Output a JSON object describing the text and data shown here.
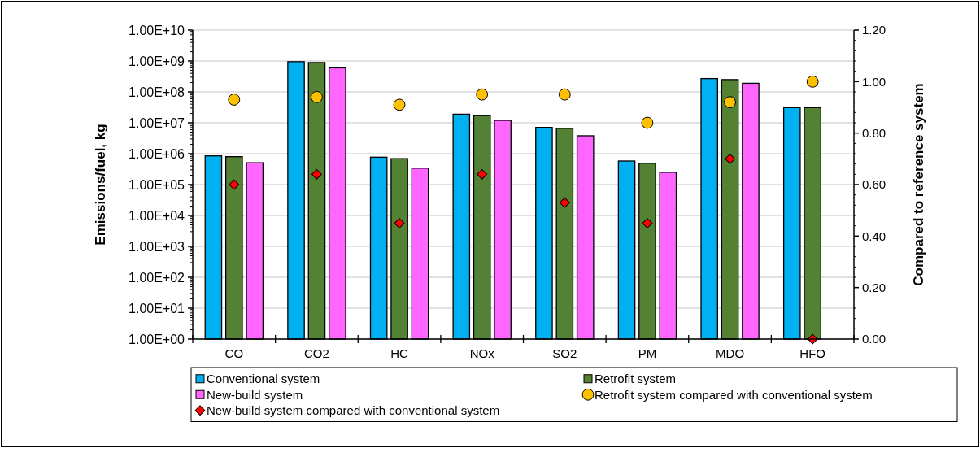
{
  "chart_data": {
    "type": "bar",
    "ylabel": "Emissions/fuel, kg",
    "y2label": "Compared to reference system",
    "categories": [
      "CO",
      "CO2",
      "HC",
      "NOx",
      "SO2",
      "PM",
      "MDO",
      "HFO"
    ],
    "log": "y",
    "grid": "y",
    "legend": "bottom",
    "ylim": [
      1,
      10000000000
    ],
    "yticks": [
      {
        "value": 1,
        "label": "1.00E+00"
      },
      {
        "value": 10,
        "label": "1.00E+01"
      },
      {
        "value": 100,
        "label": "1.00E+02"
      },
      {
        "value": 1000,
        "label": "1.00E+03"
      },
      {
        "value": 10000,
        "label": "1.00E+04"
      },
      {
        "value": 100000,
        "label": "1.00E+05"
      },
      {
        "value": 1000000,
        "label": "1.00E+06"
      },
      {
        "value": 10000000,
        "label": "1.00E+07"
      },
      {
        "value": 100000000,
        "label": "1.00E+08"
      },
      {
        "value": 1000000000,
        "label": "1.00E+09"
      },
      {
        "value": 10000000000,
        "label": "1.00E+10"
      }
    ],
    "y2lim": [
      0,
      1.2
    ],
    "y2ticks": [
      {
        "value": 0,
        "label": "0.00"
      },
      {
        "value": 0.2,
        "label": "0.20"
      },
      {
        "value": 0.4,
        "label": "0.40"
      },
      {
        "value": 0.6,
        "label": "0.60"
      },
      {
        "value": 0.8,
        "label": "0.80"
      },
      {
        "value": 1,
        "label": "1.00"
      },
      {
        "value": 1.2,
        "label": "1.20"
      }
    ],
    "series": [
      {
        "name": "Conventional system",
        "color": "#00b0f0",
        "values": [
          850000,
          950000000,
          770000,
          19000000,
          7100000,
          580000,
          270000000,
          31000000
        ]
      },
      {
        "name": "Retrofit system",
        "color": "#548235",
        "values": [
          800000,
          890000000,
          690000,
          17000000,
          6600000,
          490000,
          250000000,
          31000000
        ]
      },
      {
        "name": "New-build system",
        "color": "#ff66ff",
        "values": [
          510000,
          600000000,
          340000,
          12000000,
          3800000,
          250000,
          190000000,
          null
        ]
      },
      {
        "name": "Retrofit system compared with conventional system",
        "type": "scatter",
        "axis": "y2",
        "marker": "circle",
        "color": "#ffc000",
        "values": [
          0.93,
          0.94,
          0.91,
          0.95,
          0.95,
          0.84,
          0.92,
          1.0
        ]
      },
      {
        "name": "New-build system compared with conventional system",
        "type": "scatter",
        "axis": "y2",
        "marker": "diamond",
        "color": "#ff0000",
        "values": [
          0.6,
          0.64,
          0.45,
          0.64,
          0.53,
          0.45,
          0.7,
          0
        ]
      }
    ]
  }
}
